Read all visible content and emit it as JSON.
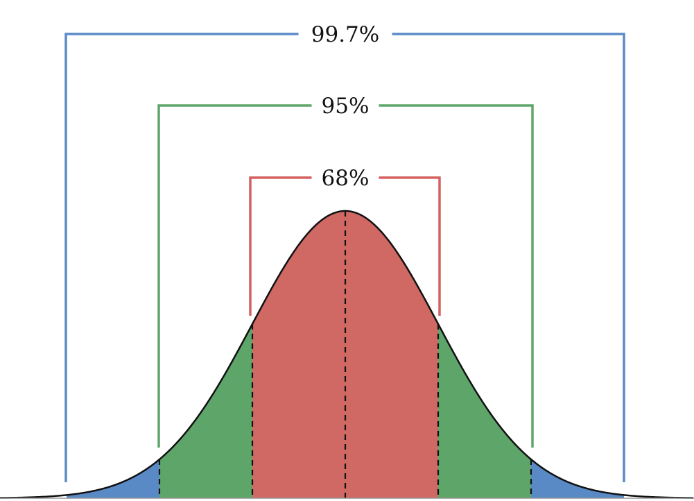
{
  "chart_data": {
    "type": "area",
    "title": "",
    "distribution": "normal",
    "mean": 0,
    "sd": 1,
    "xlim": [
      -3.7,
      3.75
    ],
    "bands": [
      {
        "sigma": 1,
        "label": "68%",
        "color": "#d06864"
      },
      {
        "sigma": 2,
        "label": "95%",
        "color": "#5ea56a"
      },
      {
        "sigma": 3,
        "label": "99.7%",
        "color": "#5a8ac6"
      }
    ],
    "bracket_colors": {
      "68%": "#d4615f",
      "95%": "#5ea56a",
      "99.7%": "#5b8bc8"
    },
    "curve_color": "#111111",
    "divider_style": "dashed"
  }
}
